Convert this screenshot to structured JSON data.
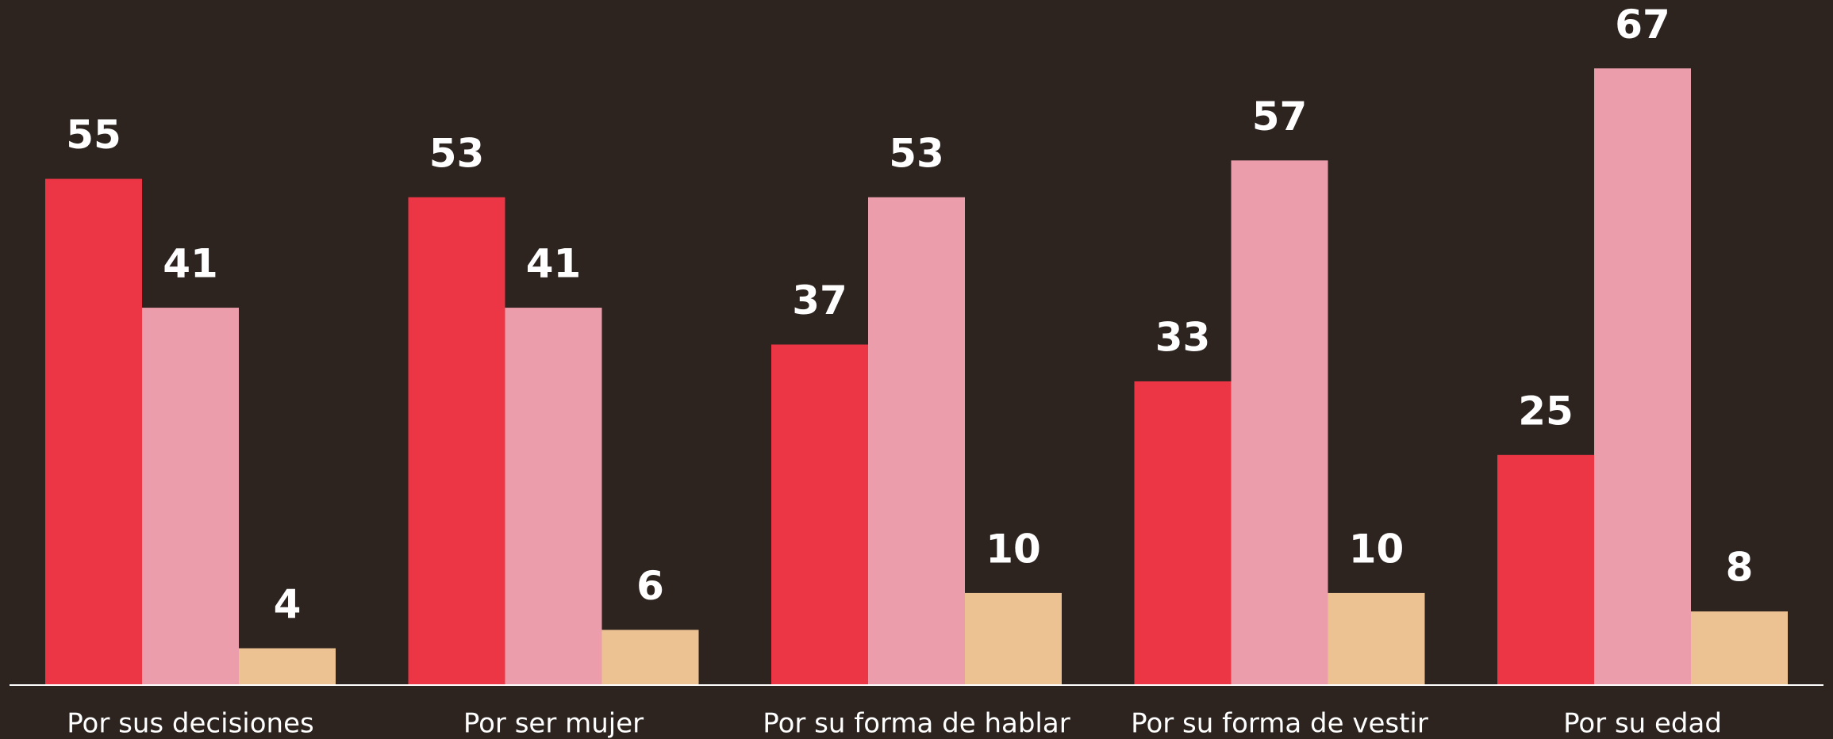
{
  "chart_data": {
    "type": "bar",
    "categories": [
      "Por sus decisiones",
      "Por ser mujer",
      "Por su forma de hablar",
      "Por su forma de vestir",
      "Por su edad"
    ],
    "series": [
      {
        "color": "#ec3646",
        "values": [
          55,
          53,
          37,
          33,
          25
        ]
      },
      {
        "color": "#ec9dab",
        "values": [
          41,
          41,
          53,
          57,
          67
        ]
      },
      {
        "color": "#edc292",
        "values": [
          4,
          6,
          10,
          10,
          8
        ]
      }
    ],
    "ylim": [
      0,
      74
    ]
  }
}
